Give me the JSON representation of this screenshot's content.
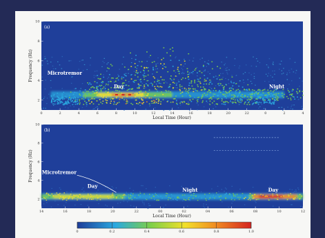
{
  "colors": {
    "outer_background": "#232a56",
    "paper": "#f7f7f5",
    "plot_background": "#1f3f9a",
    "annotation": "#ffffff"
  },
  "colorbar": {
    "ticks": [
      "0",
      "0.2",
      "0.4",
      "0.6",
      "0.8",
      "1.0"
    ],
    "range": [
      0,
      1
    ],
    "colors": [
      "#1e3d99",
      "#2aa9e0",
      "#7ccf4a",
      "#f2e02a",
      "#f08a22",
      "#d42320"
    ]
  },
  "chart_data": [
    {
      "type": "heatmap",
      "panel_label": "(a)",
      "xlabel": "Local Time (Hour)",
      "ylabel": "Frequency (Hz)",
      "x_ticks": [
        "0",
        "2",
        "4",
        "6",
        "8",
        "10",
        "12",
        "14",
        "16",
        "18",
        "20",
        "22",
        "0",
        "2",
        "4"
      ],
      "xlim": [
        0,
        28
      ],
      "y_ticks": [
        "2",
        "4",
        "6",
        "8",
        "10"
      ],
      "ylim": [
        1,
        10
      ],
      "grid": false,
      "annotations": [
        {
          "text": "Microtremor",
          "x": 2.5,
          "y": 4.6
        },
        {
          "text": "Day",
          "x": 8.3,
          "y": 3.2
        },
        {
          "text": "Night",
          "x": 25.2,
          "y": 3.2
        }
      ]
    },
    {
      "type": "heatmap",
      "panel_label": "(b)",
      "xlabel": "Local Time (Hour)",
      "ylabel": "Frequency (Hz)",
      "x_ticks": [
        "14",
        "16",
        "18",
        "20",
        "22",
        "00",
        "02",
        "04",
        "06",
        "08",
        "10",
        "12"
      ],
      "xlim": [
        14,
        36
      ],
      "y_ticks": [
        "2",
        "4",
        "6",
        "8",
        "10"
      ],
      "ylim": [
        1,
        10
      ],
      "grid": false,
      "annotations": [
        {
          "text": "Microtremor",
          "x": 15.5,
          "y": 4.7
        },
        {
          "text": "Day",
          "x": 18.3,
          "y": 3.2
        },
        {
          "text": "Night",
          "x": 26.5,
          "y": 2.8
        },
        {
          "text": "Day",
          "x": 33.5,
          "y": 2.8
        }
      ]
    }
  ]
}
